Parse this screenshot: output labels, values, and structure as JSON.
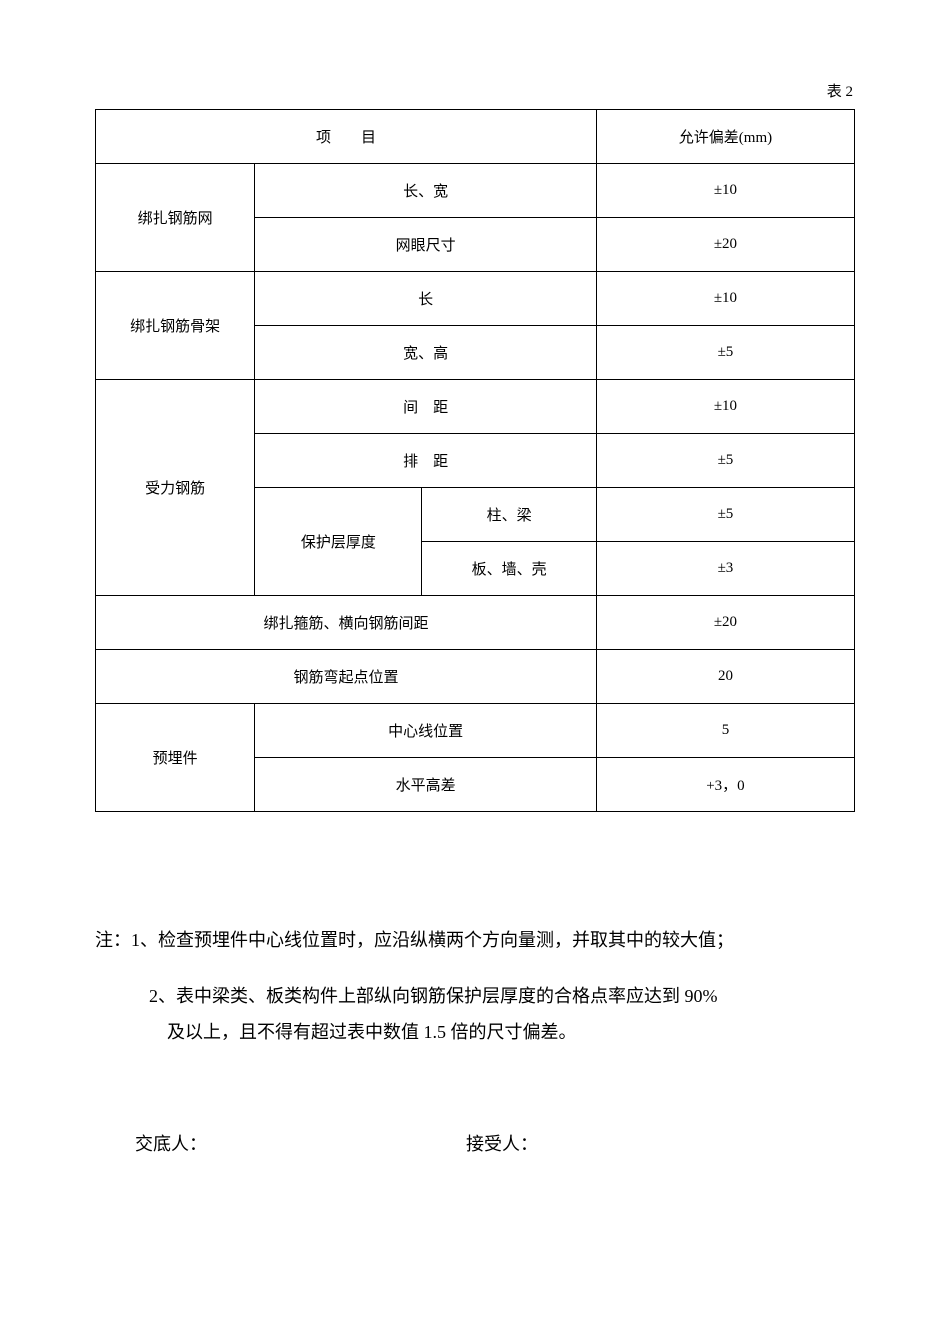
{
  "table_label": "表 2",
  "header": {
    "project": "项　　目",
    "tolerance": "允许偏差(mm)"
  },
  "rows": {
    "r1": {
      "cat": "绑扎钢筋网",
      "item1": "长、宽",
      "val1": "±10",
      "item2": "网眼尺寸",
      "val2": "±20"
    },
    "r2": {
      "cat": "绑扎钢筋骨架",
      "item1": "长",
      "val1": "±10",
      "item2": "宽、高",
      "val2": "±5"
    },
    "r3": {
      "cat": "受力钢筋",
      "item1": "间　距",
      "val1": "±10",
      "item2": "排　距",
      "val2": "±5",
      "sub": "保护层厚度",
      "sub1": "柱、梁",
      "subval1": "±5",
      "sub2": "板、墙、壳",
      "subval2": "±3"
    },
    "r4": {
      "cat": "绑扎箍筋、横向钢筋间距",
      "val": "±20"
    },
    "r5": {
      "cat": "钢筋弯起点位置",
      "val": "20"
    },
    "r6": {
      "cat": "预埋件",
      "item1": "中心线位置",
      "val1": "5",
      "item2": "水平高差",
      "val2": "+3，0"
    }
  },
  "notes": {
    "n1": "注：1、检查预埋件中心线位置时，应沿纵横两个方向量测，并取其中的较大值；",
    "n2a": "2、表中梁类、板类构件上部纵向钢筋保护层厚度的合格点率应达到 90%",
    "n2b": "及以上，且不得有超过表中数值 1.5 倍的尺寸偏差。"
  },
  "signatures": {
    "s1": "交底人：",
    "s2": "接受人："
  }
}
